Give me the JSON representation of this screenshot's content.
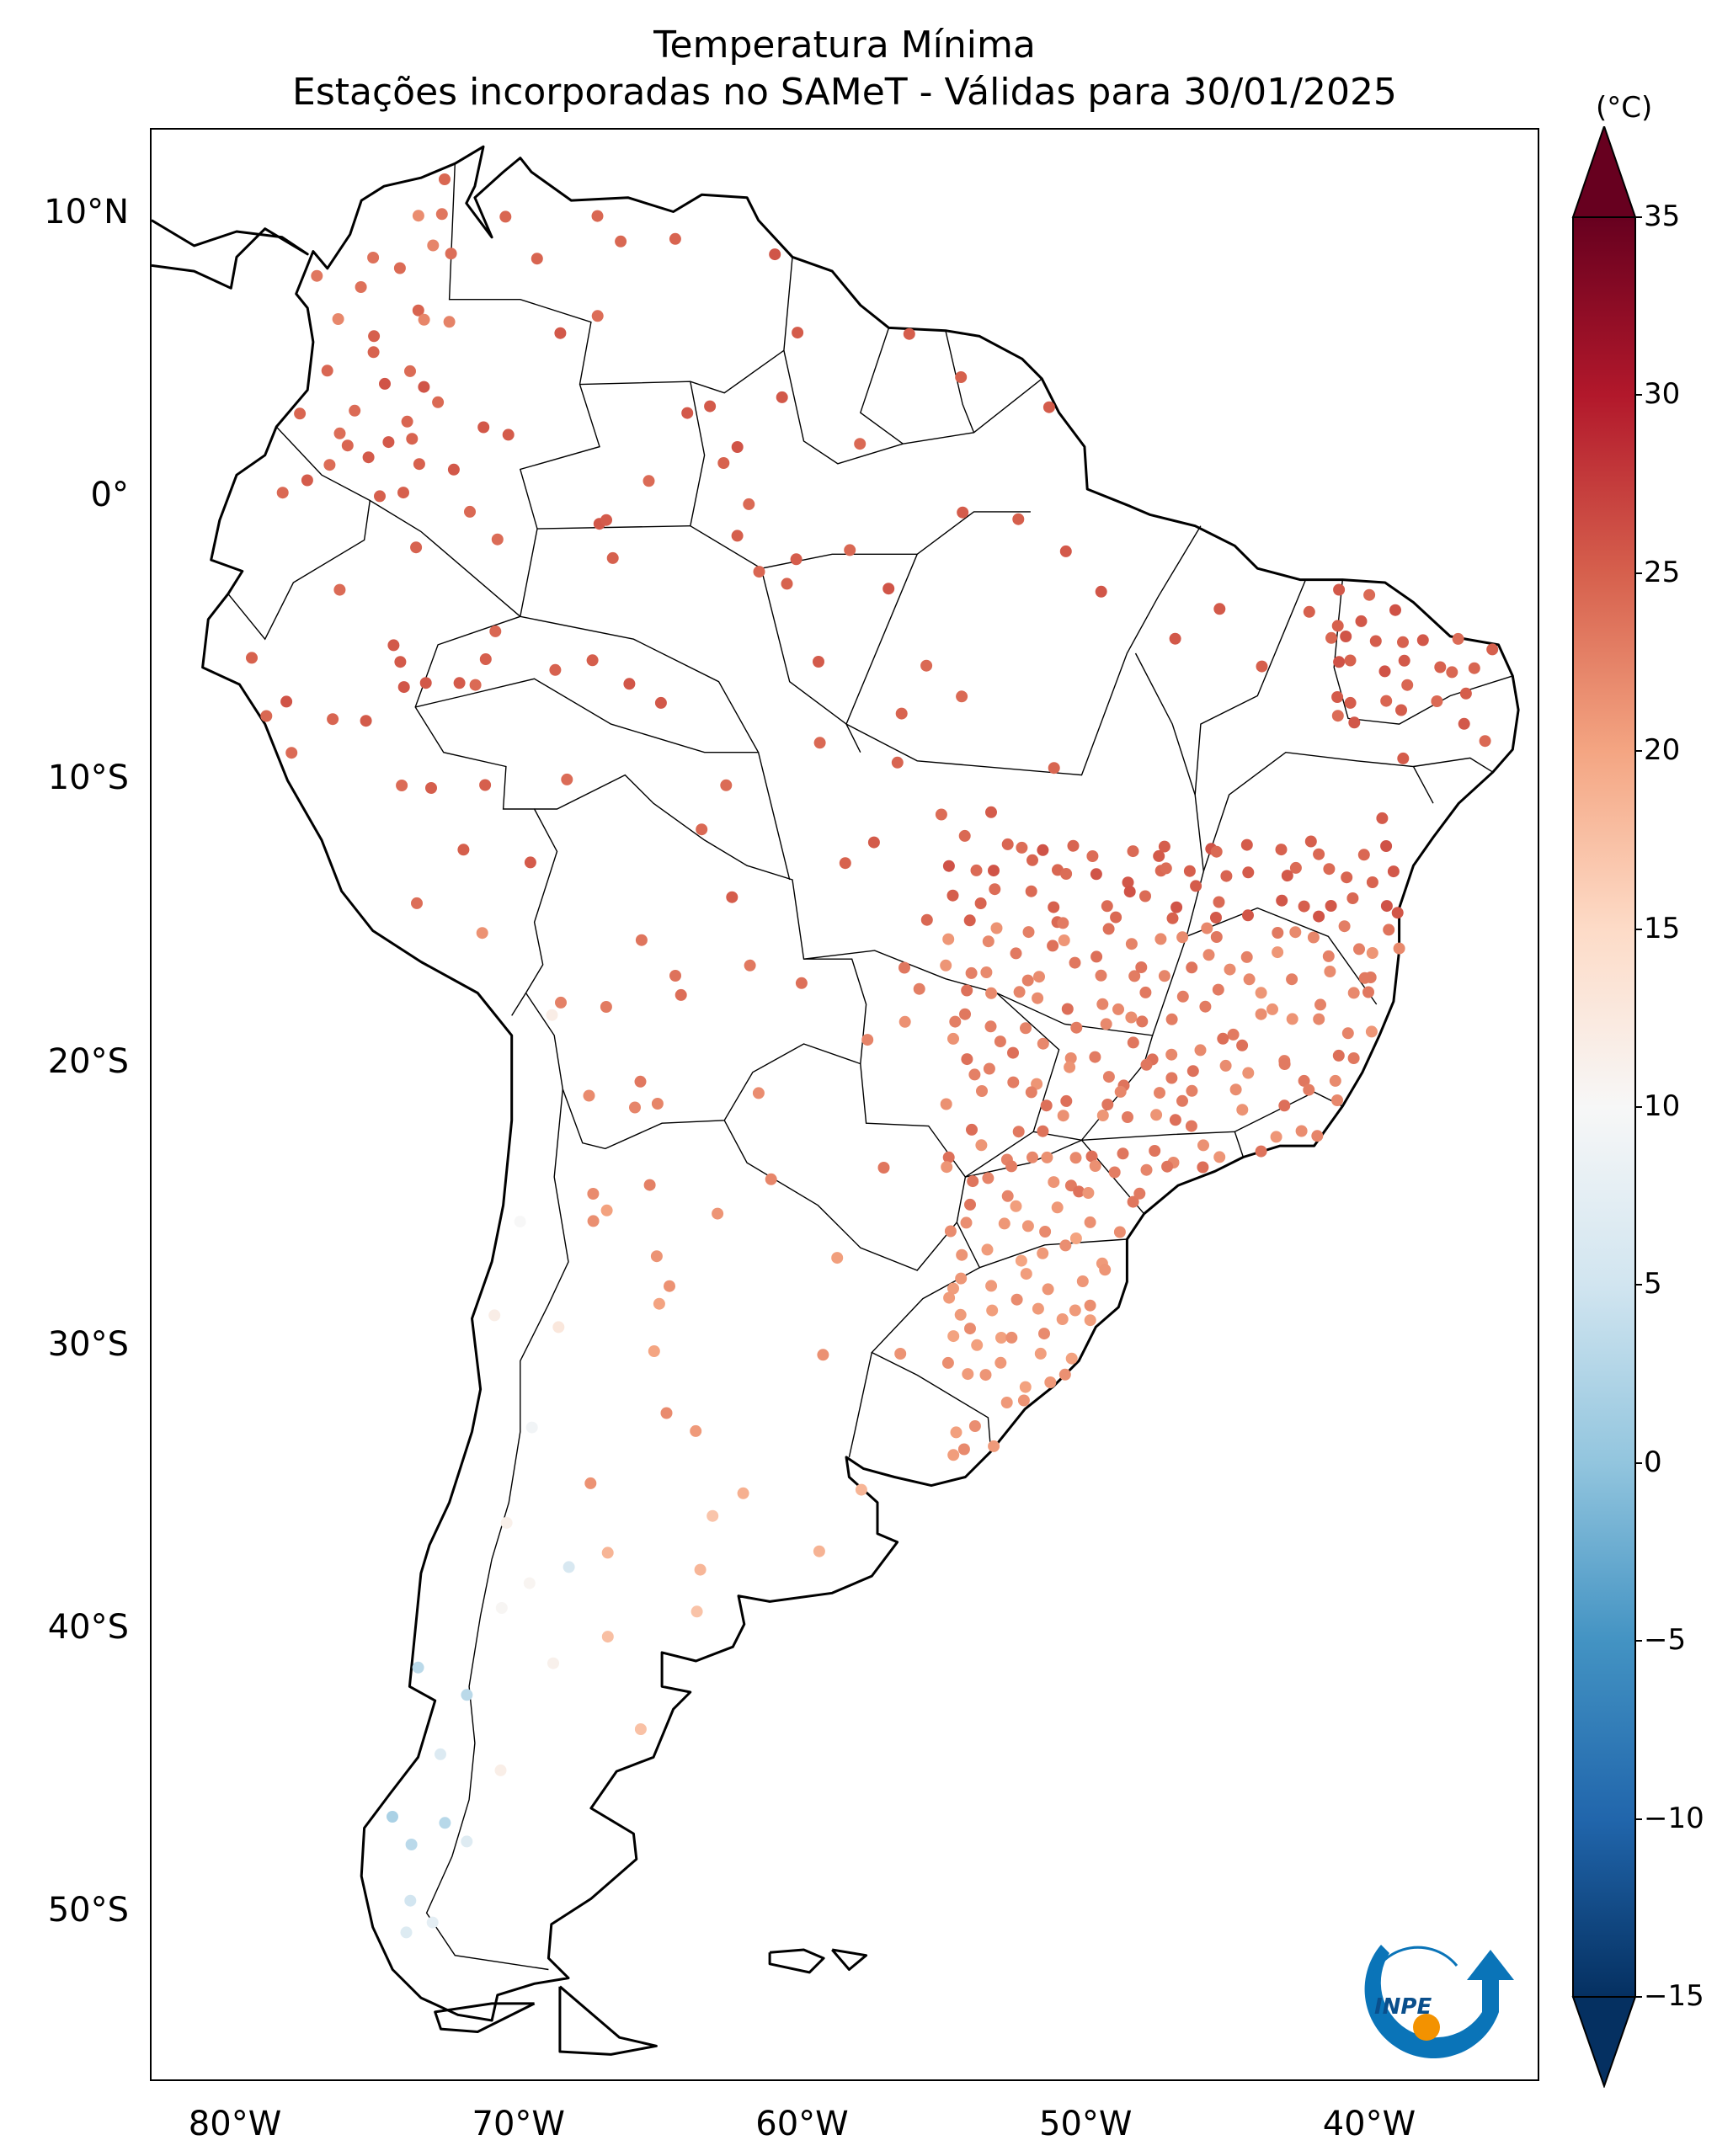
{
  "title": {
    "line1": "Temperatura Mínima",
    "line2": "Estações incorporadas no SAMeT - Válidas para 30/01/2025"
  },
  "map": {
    "lon_range": [
      -83,
      -34
    ],
    "lat_range": [
      -56,
      13
    ],
    "lat_ticks": [
      {
        "value": 10,
        "label": "10°N"
      },
      {
        "value": 0,
        "label": "0°"
      },
      {
        "value": -10,
        "label": "10°S"
      },
      {
        "value": -20,
        "label": "20°S"
      },
      {
        "value": -30,
        "label": "30°S"
      },
      {
        "value": -40,
        "label": "40°S"
      },
      {
        "value": -50,
        "label": "50°S"
      }
    ],
    "lon_ticks": [
      {
        "value": -80,
        "label": "80°W"
      },
      {
        "value": -70,
        "label": "70°W"
      },
      {
        "value": -60,
        "label": "60°W"
      },
      {
        "value": -50,
        "label": "50°W"
      },
      {
        "value": -40,
        "label": "40°W"
      }
    ]
  },
  "colorbar": {
    "unit": "(°C)",
    "min": -15,
    "max": 35,
    "ticks": [
      "35",
      "30",
      "25",
      "20",
      "15",
      "10",
      "5",
      "0",
      "−5",
      "−10",
      "−15"
    ],
    "colormap": "RdBu_r",
    "extend": "both"
  },
  "logo": {
    "text": "INPE"
  },
  "colors": {
    "land_outline": "#000000",
    "background": "#ffffff"
  }
}
